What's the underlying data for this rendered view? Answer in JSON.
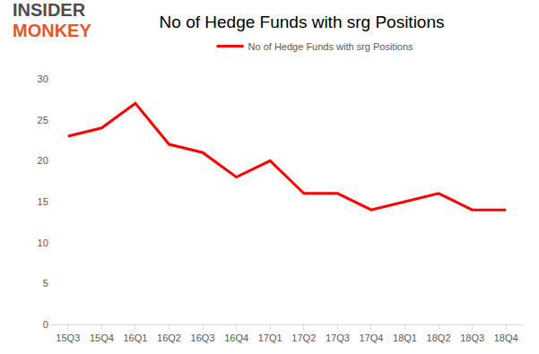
{
  "chart_data": {
    "type": "line",
    "title": "No of Hedge Funds with srg Positions",
    "annotations": [
      "INSIDER",
      "MONKEY"
    ],
    "categories": [
      "15Q3",
      "15Q4",
      "16Q1",
      "16Q2",
      "16Q3",
      "16Q4",
      "17Q1",
      "17Q2",
      "17Q3",
      "17Q4",
      "18Q1",
      "18Q2",
      "18Q3",
      "18Q4"
    ],
    "series": [
      {
        "name": "No of Hedge Funds with srg Positions",
        "color": "#ff0000",
        "values": [
          23,
          24,
          27,
          22,
          21,
          18,
          20,
          16,
          16,
          14,
          15,
          16,
          14,
          14
        ]
      }
    ],
    "ylim": [
      0,
      30
    ],
    "yticks": [
      0,
      5,
      10,
      15,
      20,
      25,
      30
    ],
    "grid": false,
    "legend": "top"
  }
}
